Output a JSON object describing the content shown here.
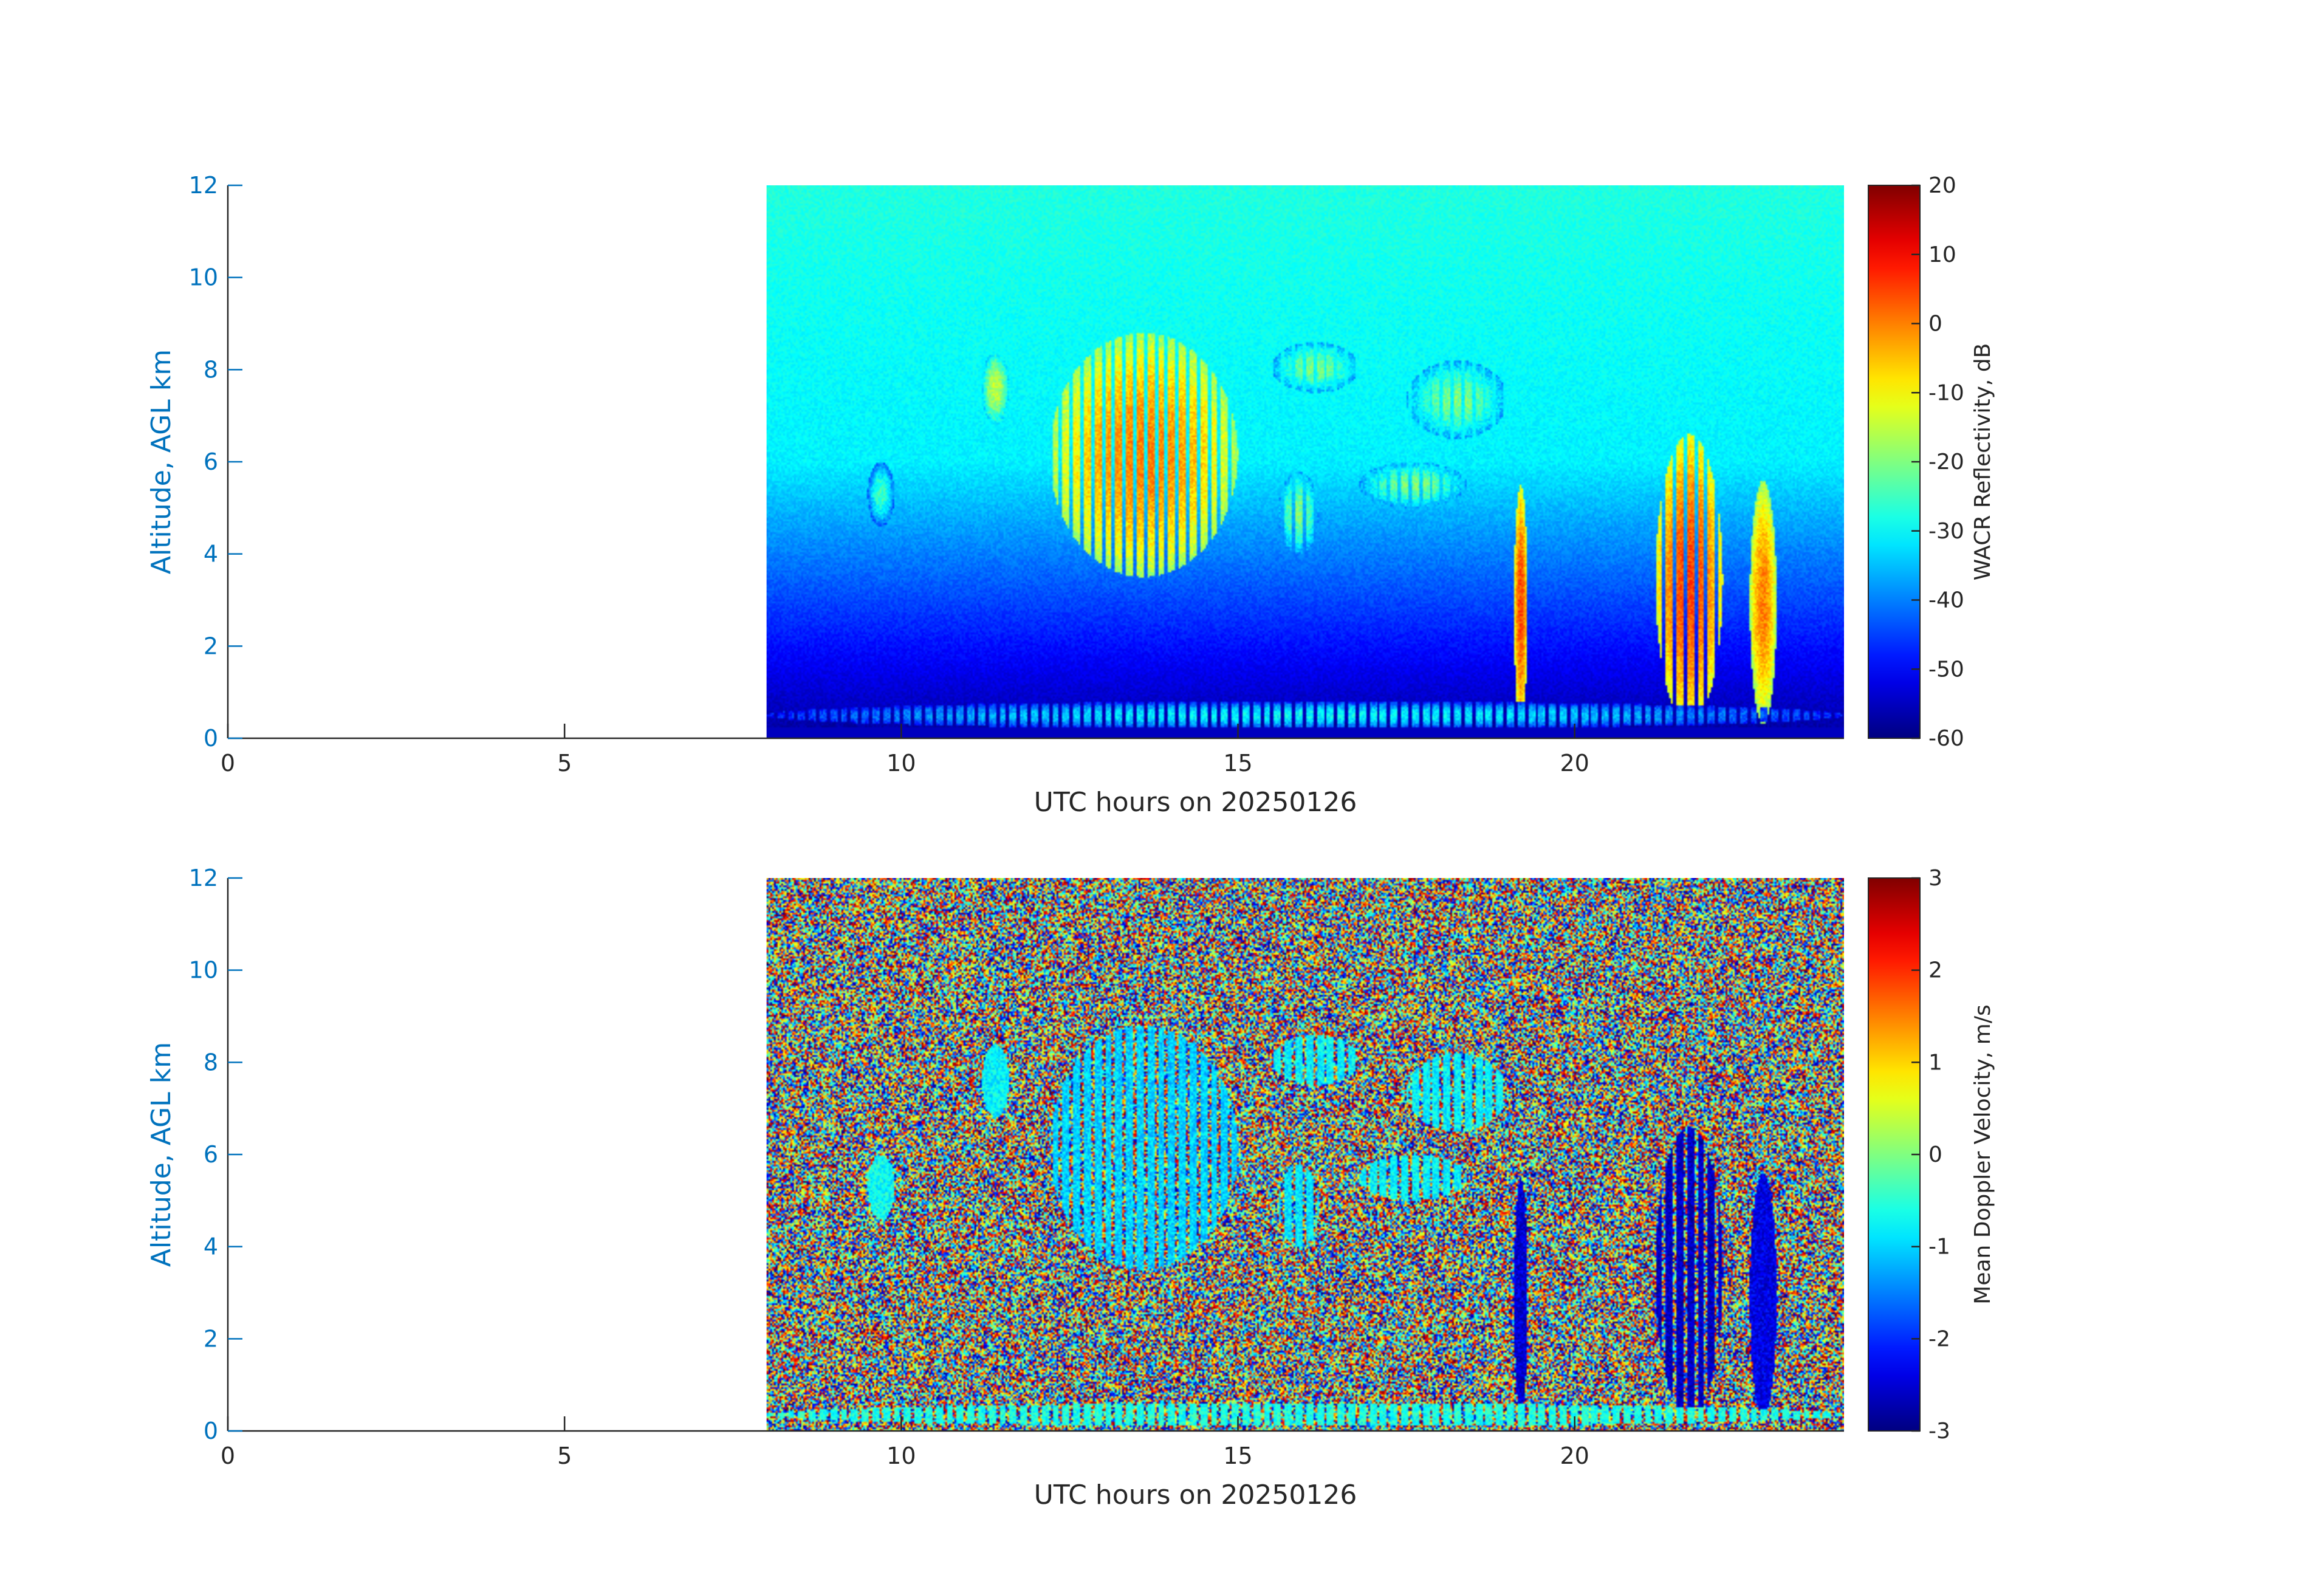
{
  "chart_data": [
    {
      "type": "heatmap",
      "xlabel": "UTC hours on 20250126",
      "ylabel": "Altitude, AGL km",
      "xlim": [
        0,
        24
      ],
      "ylim": [
        0,
        12
      ],
      "xticks": [
        "0",
        "5",
        "10",
        "15",
        "20"
      ],
      "yticks": [
        "0",
        "2",
        "4",
        "6",
        "8",
        "10",
        "12"
      ],
      "data_x_range": [
        8,
        24
      ],
      "colorbar": {
        "label": "WACR Reflectivity, dB",
        "range": [
          -60,
          20
        ],
        "ticks": [
          "20",
          "10",
          "0",
          "-10",
          "-20",
          "-30",
          "-40",
          "-50",
          "-60"
        ],
        "colormap": "jet"
      },
      "features": [
        {
          "x": [
            12.2,
            15.0
          ],
          "y": [
            3.5,
            8.8
          ],
          "value": 0
        },
        {
          "x": [
            11.2,
            11.6
          ],
          "y": [
            6.8,
            8.4
          ],
          "value": -15
        },
        {
          "x": [
            15.5,
            16.8
          ],
          "y": [
            7.5,
            8.6
          ],
          "value": -20
        },
        {
          "x": [
            17.5,
            19.0
          ],
          "y": [
            6.5,
            8.2
          ],
          "value": -20
        },
        {
          "x": [
            15.6,
            16.2
          ],
          "y": [
            4.0,
            5.8
          ],
          "value": -20
        },
        {
          "x": [
            16.8,
            18.4
          ],
          "y": [
            5.0,
            6.0
          ],
          "value": -20
        },
        {
          "x": [
            19.1,
            19.3
          ],
          "y": [
            0.3,
            5.5
          ],
          "value": 5
        },
        {
          "x": [
            21.2,
            22.2
          ],
          "y": [
            0.3,
            6.6
          ],
          "value": 5
        },
        {
          "x": [
            22.6,
            23.0
          ],
          "y": [
            0.3,
            5.6
          ],
          "value": 0
        },
        {
          "x": [
            9.5,
            9.9
          ],
          "y": [
            4.6,
            6.0
          ],
          "value": -25
        },
        {
          "x": [
            8.0,
            24.0
          ],
          "y": [
            0.2,
            0.8
          ],
          "value": -30
        }
      ]
    },
    {
      "type": "heatmap",
      "xlabel": "UTC hours on 20250126",
      "ylabel": "Altitude, AGL km",
      "xlim": [
        0,
        24
      ],
      "ylim": [
        0,
        12
      ],
      "xticks": [
        "0",
        "5",
        "10",
        "15",
        "20"
      ],
      "yticks": [
        "0",
        "2",
        "4",
        "6",
        "8",
        "10",
        "12"
      ],
      "data_x_range": [
        8,
        24
      ],
      "colorbar": {
        "label": "Mean Doppler Velocity, m/s",
        "range": [
          -3,
          3
        ],
        "ticks": [
          "3",
          "2",
          "1",
          "0",
          "-1",
          "-2",
          "-3"
        ],
        "colormap": "jet"
      },
      "features": [
        {
          "x": [
            12.2,
            15.0
          ],
          "y": [
            3.5,
            8.8
          ],
          "value": -1
        },
        {
          "x": [
            11.2,
            11.6
          ],
          "y": [
            6.8,
            8.4
          ],
          "value": -0.8
        },
        {
          "x": [
            15.5,
            16.8
          ],
          "y": [
            7.5,
            8.6
          ],
          "value": -0.8
        },
        {
          "x": [
            17.5,
            19.0
          ],
          "y": [
            6.5,
            8.2
          ],
          "value": -0.8
        },
        {
          "x": [
            15.6,
            16.2
          ],
          "y": [
            4.0,
            5.8
          ],
          "value": -0.9
        },
        {
          "x": [
            16.8,
            18.4
          ],
          "y": [
            5.0,
            6.0
          ],
          "value": -0.8
        },
        {
          "x": [
            19.1,
            19.3
          ],
          "y": [
            0.3,
            5.5
          ],
          "value": -2.5
        },
        {
          "x": [
            21.2,
            22.2
          ],
          "y": [
            0.3,
            6.6
          ],
          "value": -2.6
        },
        {
          "x": [
            22.6,
            23.0
          ],
          "y": [
            0.3,
            5.6
          ],
          "value": -2.4
        },
        {
          "x": [
            9.5,
            9.9
          ],
          "y": [
            4.6,
            6.0
          ],
          "value": -0.7
        },
        {
          "x": [
            8.0,
            24.0
          ],
          "y": [
            0.1,
            0.6
          ],
          "value": -0.6
        }
      ]
    }
  ]
}
